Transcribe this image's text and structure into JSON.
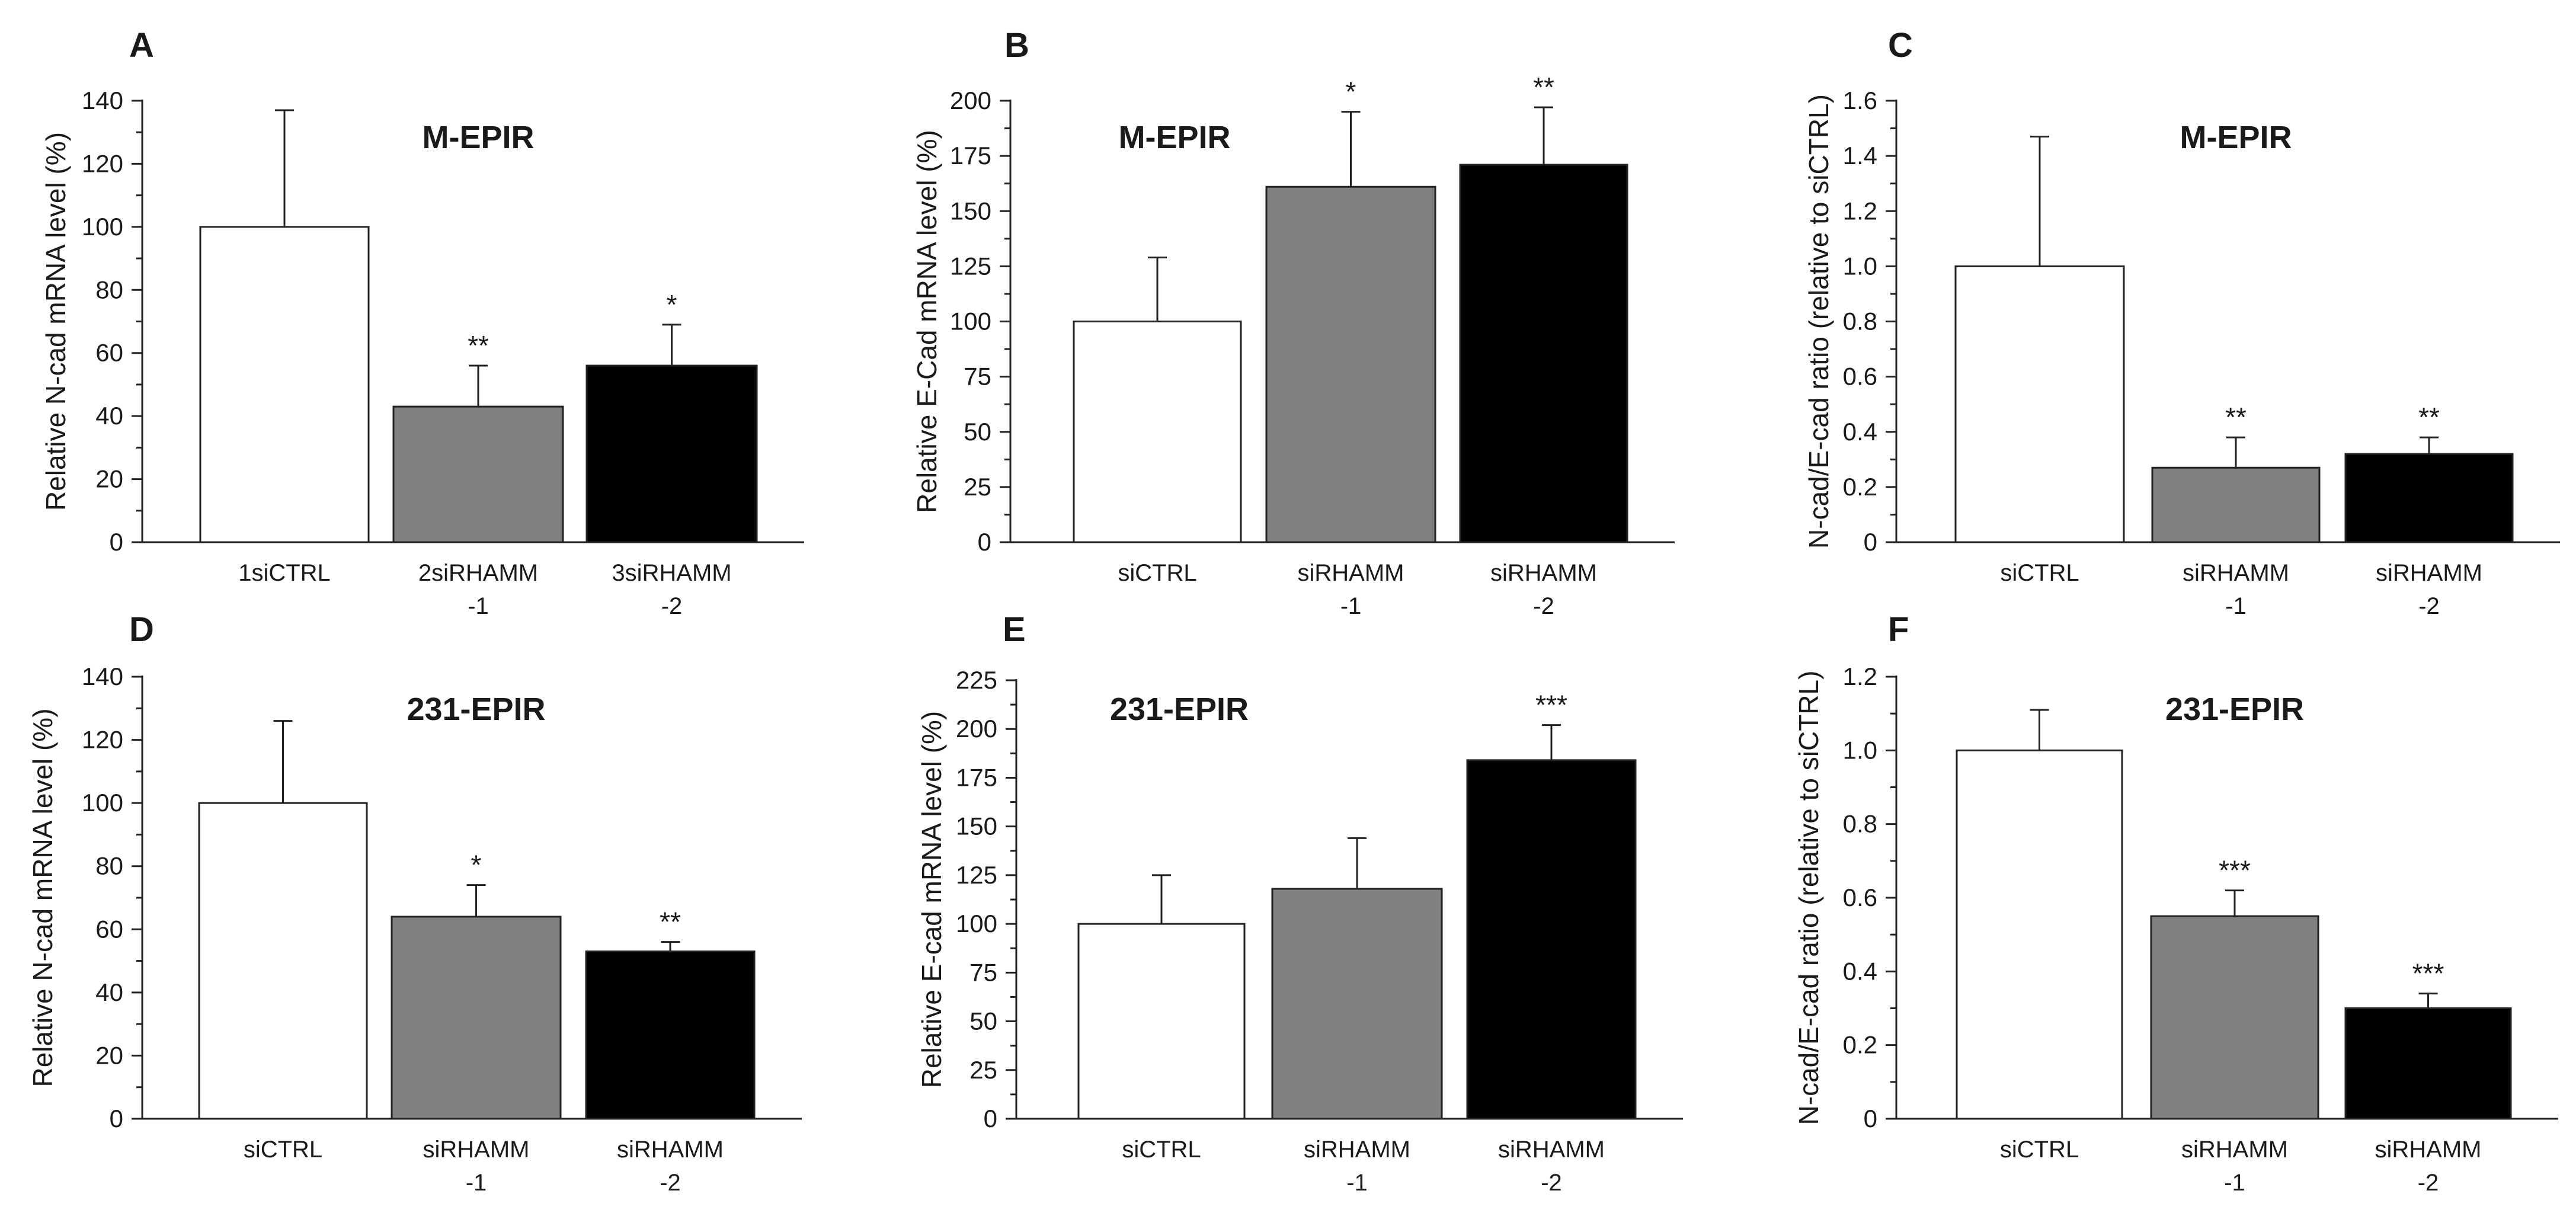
{
  "chart_data": [
    {
      "type": "bar",
      "panel": "A",
      "title": "M-EPIR",
      "ylabel": "Relative N-cad mRNA level (%)",
      "ylim": [
        0,
        140
      ],
      "yticks": [
        "0",
        "20",
        "40",
        "60",
        "80",
        "100",
        "120",
        "140"
      ],
      "categories": [
        [
          "1siCTRL"
        ],
        [
          "2siRHAMM",
          "-1"
        ],
        [
          "3siRHAMM",
          "-2"
        ]
      ],
      "values": [
        100,
        43,
        56
      ],
      "errors": [
        37,
        13,
        13
      ],
      "significance": [
        "",
        "**",
        "*"
      ],
      "colors": [
        "#ffffff",
        "#808080",
        "#000000"
      ]
    },
    {
      "type": "bar",
      "panel": "B",
      "title": "M-EPIR",
      "ylabel": "Relative E-Cad mRNA level (%)",
      "ylim": [
        0,
        200
      ],
      "yticks": [
        "0",
        "25",
        "50",
        "75",
        "100",
        "125",
        "150",
        "175",
        "200"
      ],
      "categories": [
        [
          "siCTRL"
        ],
        [
          "siRHAMM",
          "-1"
        ],
        [
          "siRHAMM",
          "-2"
        ]
      ],
      "values": [
        100,
        161,
        171
      ],
      "errors": [
        29,
        34,
        26
      ],
      "significance": [
        "",
        "*",
        "**"
      ],
      "colors": [
        "#ffffff",
        "#808080",
        "#000000"
      ]
    },
    {
      "type": "bar",
      "panel": "C",
      "title": "M-EPIR",
      "ylabel": "N-cad/E-cad ratio (relative to siCTRL)",
      "ylim": [
        0,
        1.6
      ],
      "yticks": [
        "0",
        "0.2",
        "0.4",
        "0.6",
        "0.8",
        "1.0",
        "1.2",
        "1.4",
        "1.6"
      ],
      "categories": [
        [
          "siCTRL"
        ],
        [
          "siRHAMM",
          "-1"
        ],
        [
          "siRHAMM",
          "-2"
        ]
      ],
      "values": [
        1.0,
        0.27,
        0.32
      ],
      "errors": [
        0.47,
        0.11,
        0.06
      ],
      "significance": [
        "",
        "**",
        "**"
      ],
      "colors": [
        "#ffffff",
        "#808080",
        "#000000"
      ]
    },
    {
      "type": "bar",
      "panel": "D",
      "title": "231-EPIR",
      "ylabel": "Relative N-cad mRNA level (%)",
      "ylim": [
        0,
        140
      ],
      "yticks": [
        "0",
        "20",
        "40",
        "60",
        "80",
        "100",
        "120",
        "140"
      ],
      "categories": [
        [
          "siCTRL"
        ],
        [
          "siRHAMM",
          "-1"
        ],
        [
          "siRHAMM",
          "-2"
        ]
      ],
      "values": [
        100,
        64,
        53
      ],
      "errors": [
        26,
        10,
        3
      ],
      "significance": [
        "",
        "*",
        "**"
      ],
      "colors": [
        "#ffffff",
        "#808080",
        "#000000"
      ]
    },
    {
      "type": "bar",
      "panel": "E",
      "title": "231-EPIR",
      "ylabel": "Relative E-cad mRNA level (%)",
      "ylim": [
        0,
        225
      ],
      "yticks": [
        "0",
        "25",
        "50",
        "75",
        "100",
        "125",
        "150",
        "175",
        "200",
        "225"
      ],
      "categories": [
        [
          "siCTRL"
        ],
        [
          "siRHAMM",
          "-1"
        ],
        [
          "siRHAMM",
          "-2"
        ]
      ],
      "values": [
        100,
        118,
        184
      ],
      "errors": [
        25,
        26,
        18
      ],
      "significance": [
        "",
        "",
        "***"
      ],
      "colors": [
        "#ffffff",
        "#808080",
        "#000000"
      ]
    },
    {
      "type": "bar",
      "panel": "F",
      "title": "231-EPIR",
      "ylabel": "N-cad/E-cad ratio (relative to siCTRL)",
      "ylim": [
        0,
        1.2
      ],
      "yticks": [
        "0",
        "0.2",
        "0.4",
        "0.6",
        "0.8",
        "1.0",
        "1.2"
      ],
      "categories": [
        [
          "siCTRL"
        ],
        [
          "siRHAMM",
          "-1"
        ],
        [
          "siRHAMM",
          "-2"
        ]
      ],
      "values": [
        1.0,
        0.55,
        0.3
      ],
      "errors": [
        0.11,
        0.07,
        0.04
      ],
      "significance": [
        "",
        "***",
        "***"
      ],
      "colors": [
        "#ffffff",
        "#808080",
        "#000000"
      ]
    }
  ]
}
